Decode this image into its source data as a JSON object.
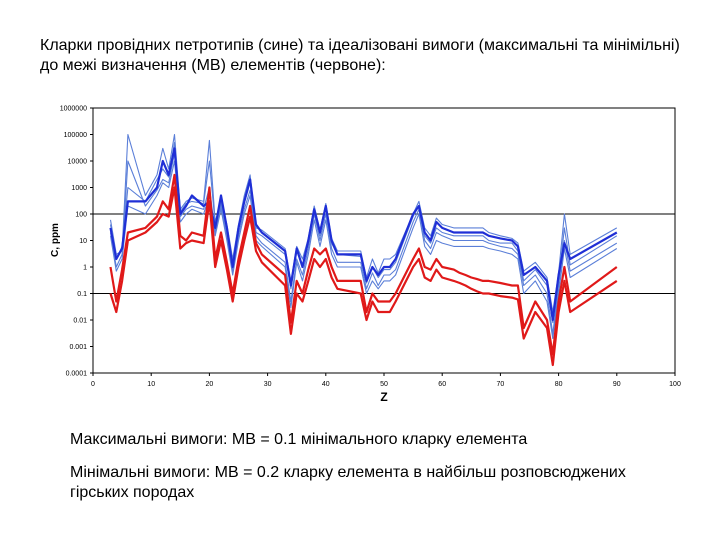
{
  "slide": {
    "title": "Кларки провідних петротипів (сине) та ідеалізовані вимоги (максимальні та мінімільні) до межі визначення (МВ) елементів (червоне):",
    "note_max": "Максимальні вимоги: МВ = 0.1 мінімального кларку елемента",
    "note_min": "Мінімальні вимоги: МВ = 0.2 кларку елемента в найбільш розповсюджених гірських породах"
  },
  "colors": {
    "blue_dark": "#1f2fd6",
    "blue_light": "#5b7fd8",
    "red": "#e01919",
    "threshold": "#000000"
  },
  "chart_data": {
    "type": "line",
    "xlabel": "Z",
    "ylabel": "C, ppm",
    "xlim": [
      0,
      100
    ],
    "ylim_log10": [
      -4,
      6
    ],
    "x_ticks": [
      "0",
      "10",
      "20",
      "30",
      "40",
      "50",
      "60",
      "70",
      "80",
      "90",
      "100"
    ],
    "y_ticks": [
      "1000000",
      "100000",
      "10000",
      "1000",
      "100",
      "10",
      "1",
      "0.1",
      "0.01",
      "0.001",
      "0.0001"
    ],
    "reference_lines": [
      100,
      0.1
    ],
    "series": [
      {
        "name": "clarke-bold",
        "color": "#1f2fd6",
        "style": "bold",
        "x": [
          3,
          4,
          5,
          6,
          9,
          11,
          12,
          13,
          14,
          15,
          16,
          17,
          19,
          20,
          21,
          22,
          23,
          24,
          25,
          26,
          27,
          28,
          29,
          33,
          34,
          35,
          36,
          37,
          38,
          39,
          40,
          41,
          42,
          46,
          47,
          48,
          49,
          50,
          51,
          52,
          55,
          56,
          57,
          58,
          59,
          60,
          62,
          63,
          64,
          65,
          66,
          67,
          68,
          70,
          72,
          73,
          74,
          76,
          78,
          79,
          80,
          81,
          82,
          90
        ],
        "y": [
          30,
          2,
          5,
          300,
          300,
          1000,
          10000,
          3000,
          30000,
          100,
          200,
          500,
          200,
          300,
          30,
          500,
          30,
          1,
          30,
          300,
          2000,
          40,
          20,
          4,
          0.2,
          5,
          1,
          10,
          150,
          20,
          200,
          10,
          3,
          3,
          0.3,
          1,
          0.5,
          1,
          1,
          2,
          100,
          200,
          20,
          10,
          50,
          30,
          20,
          20,
          20,
          20,
          20,
          20,
          15,
          12,
          10,
          6,
          0.5,
          1,
          0.3,
          0.01,
          0.5,
          8,
          2,
          20
        ]
      },
      {
        "name": "petrotype-1",
        "color": "#5b7fd8",
        "style": "thin",
        "x": [
          3,
          4,
          5,
          6,
          9,
          11,
          12,
          13,
          14,
          15,
          16,
          17,
          19,
          20,
          21,
          22,
          23,
          24,
          25,
          26,
          27,
          28,
          29,
          33,
          34,
          35,
          36,
          37,
          38,
          39,
          40,
          41,
          42,
          46,
          47,
          48,
          49,
          50,
          51,
          52,
          55,
          56,
          57,
          58,
          59,
          60,
          62,
          63,
          64,
          65,
          66,
          67,
          68,
          70,
          72,
          73,
          74,
          76,
          78,
          79,
          80,
          81,
          82,
          90
        ],
        "y": [
          60,
          3,
          4,
          100000,
          500,
          3000,
          30000,
          5000,
          100000,
          150,
          300,
          400,
          300,
          60000,
          50,
          300,
          40,
          2,
          40,
          500,
          3000,
          30,
          25,
          5,
          0.3,
          6,
          2,
          12,
          200,
          25,
          250,
          12,
          4,
          4,
          0.4,
          2,
          0.6,
          2,
          2,
          3,
          100,
          300,
          30,
          15,
          70,
          40,
          30,
          30,
          30,
          30,
          30,
          30,
          20,
          15,
          12,
          8,
          0.7,
          1.5,
          0.4,
          0.02,
          0.6,
          100,
          3,
          30
        ]
      },
      {
        "name": "petrotype-2",
        "color": "#5b7fd8",
        "style": "thin",
        "x": [
          3,
          4,
          5,
          6,
          9,
          11,
          12,
          13,
          14,
          15,
          16,
          17,
          19,
          20,
          21,
          22,
          23,
          24,
          25,
          26,
          27,
          28,
          29,
          33,
          34,
          35,
          36,
          37,
          38,
          39,
          40,
          41,
          42,
          46,
          47,
          48,
          49,
          50,
          51,
          52,
          55,
          56,
          57,
          58,
          59,
          60,
          62,
          63,
          64,
          65,
          66,
          67,
          68,
          70,
          72,
          73,
          74,
          76,
          78,
          79,
          80,
          81,
          82,
          90
        ],
        "y": [
          20,
          1,
          3,
          10000,
          200,
          800,
          2000,
          1500,
          20000,
          80,
          150,
          200,
          150,
          1000,
          20,
          200,
          15,
          0.7,
          15,
          150,
          800,
          15,
          8,
          1.5,
          0.05,
          2,
          0.5,
          5,
          100,
          10,
          100,
          5,
          1.5,
          1.5,
          0.15,
          0.6,
          0.2,
          0.5,
          0.5,
          0.8,
          50,
          150,
          10,
          5,
          20,
          15,
          10,
          10,
          10,
          10,
          10,
          10,
          8,
          6,
          5,
          3,
          0.2,
          0.5,
          0.1,
          0.003,
          0.2,
          10,
          0.7,
          8
        ]
      },
      {
        "name": "petrotype-3",
        "color": "#5b7fd8",
        "style": "thin",
        "x": [
          3,
          4,
          5,
          6,
          9,
          11,
          12,
          13,
          14,
          15,
          16,
          17,
          19,
          20,
          21,
          22,
          23,
          24,
          25,
          26,
          27,
          28,
          29,
          33,
          34,
          35,
          36,
          37,
          38,
          39,
          40,
          41,
          42,
          46,
          47,
          48,
          49,
          50,
          51,
          52,
          55,
          56,
          57,
          58,
          59,
          60,
          62,
          63,
          64,
          65,
          66,
          67,
          68,
          70,
          72,
          73,
          74,
          76,
          78,
          79,
          80,
          81,
          82,
          90
        ],
        "y": [
          40,
          2,
          6,
          1000,
          300,
          2000,
          5000,
          2500,
          50000,
          120,
          250,
          300,
          250,
          10000,
          40,
          250,
          25,
          1.5,
          25,
          250,
          1500,
          20,
          15,
          3,
          0.15,
          4,
          1,
          8,
          150,
          15,
          180,
          8,
          3,
          2.5,
          0.25,
          1,
          0.4,
          0.8,
          0.8,
          1.5,
          80,
          200,
          15,
          8,
          30,
          20,
          15,
          15,
          15,
          15,
          15,
          15,
          10,
          8,
          8,
          4,
          0.3,
          0.8,
          0.2,
          0.008,
          0.3,
          30,
          1.2,
          15
        ]
      },
      {
        "name": "petrotype-4",
        "color": "#5b7fd8",
        "style": "thin",
        "x": [
          3,
          4,
          5,
          6,
          9,
          11,
          12,
          13,
          14,
          15,
          16,
          17,
          19,
          20,
          21,
          22,
          23,
          24,
          25,
          26,
          27,
          28,
          29,
          33,
          34,
          35,
          36,
          37,
          38,
          39,
          40,
          41,
          42,
          46,
          47,
          48,
          49,
          50,
          51,
          52,
          55,
          56,
          57,
          58,
          59,
          60,
          62,
          63,
          64,
          65,
          66,
          67,
          68,
          70,
          72,
          73,
          74,
          76,
          78,
          79,
          80,
          81,
          82,
          90
        ],
        "y": [
          15,
          0.7,
          2,
          200,
          100,
          500,
          1500,
          1000,
          10000,
          50,
          100,
          150,
          100,
          500,
          15,
          150,
          10,
          0.5,
          10,
          100,
          500,
          10,
          6,
          1,
          0.03,
          1.5,
          0.3,
          3,
          60,
          6,
          60,
          3,
          1,
          1,
          0.1,
          0.3,
          0.15,
          0.3,
          0.3,
          0.5,
          30,
          100,
          6,
          3,
          10,
          8,
          6,
          6,
          6,
          6,
          6,
          6,
          5,
          4,
          3,
          2,
          0.1,
          0.3,
          0.05,
          0.002,
          0.1,
          5,
          0.4,
          5
        ]
      },
      {
        "name": "limit-max",
        "color": "#e01919",
        "style": "red",
        "x": [
          3,
          4,
          5,
          6,
          9,
          11,
          12,
          13,
          14,
          15,
          16,
          17,
          19,
          20,
          21,
          22,
          23,
          24,
          25,
          26,
          27,
          28,
          29,
          33,
          34,
          35,
          36,
          37,
          38,
          39,
          40,
          41,
          42,
          46,
          47,
          48,
          49,
          50,
          51,
          52,
          55,
          56,
          57,
          58,
          59,
          60,
          62,
          63,
          64,
          65,
          66,
          67,
          68,
          70,
          72,
          73,
          74,
          76,
          78,
          79,
          80,
          81,
          82,
          90
        ],
        "y": [
          1,
          0.05,
          0.8,
          20,
          30,
          80,
          300,
          150,
          3000,
          15,
          10,
          20,
          15,
          1000,
          2,
          20,
          1.5,
          0.1,
          2,
          20,
          200,
          8,
          3,
          0.5,
          0.008,
          0.3,
          0.1,
          0.8,
          5,
          3,
          5,
          1,
          0.3,
          0.3,
          0.02,
          0.1,
          0.05,
          0.05,
          0.05,
          0.1,
          2,
          5,
          1,
          0.8,
          2,
          1,
          0.8,
          0.6,
          0.5,
          0.4,
          0.35,
          0.3,
          0.3,
          0.25,
          0.2,
          0.2,
          0.005,
          0.05,
          0.01,
          0.0005,
          0.05,
          1,
          0.05,
          1
        ]
      },
      {
        "name": "limit-min",
        "color": "#e01919",
        "style": "red",
        "x": [
          3,
          4,
          5,
          6,
          9,
          11,
          12,
          13,
          14,
          15,
          16,
          17,
          19,
          20,
          21,
          22,
          23,
          24,
          25,
          26,
          27,
          28,
          29,
          33,
          34,
          35,
          36,
          37,
          38,
          39,
          40,
          41,
          42,
          46,
          47,
          48,
          49,
          50,
          51,
          52,
          55,
          56,
          57,
          58,
          59,
          60,
          62,
          63,
          64,
          65,
          66,
          67,
          68,
          70,
          72,
          73,
          74,
          76,
          78,
          79,
          80,
          81,
          82,
          90
        ],
        "y": [
          0.1,
          0.02,
          0.3,
          10,
          20,
          50,
          100,
          80,
          1000,
          5,
          8,
          10,
          8,
          300,
          1,
          10,
          0.8,
          0.05,
          1,
          10,
          80,
          4,
          1.5,
          0.2,
          0.003,
          0.1,
          0.05,
          0.3,
          2,
          1,
          2,
          0.4,
          0.15,
          0.1,
          0.01,
          0.05,
          0.02,
          0.02,
          0.02,
          0.05,
          1,
          2,
          0.4,
          0.3,
          0.8,
          0.4,
          0.3,
          0.25,
          0.2,
          0.15,
          0.12,
          0.1,
          0.1,
          0.08,
          0.07,
          0.06,
          0.002,
          0.02,
          0.005,
          0.0002,
          0.02,
          0.3,
          0.02,
          0.3
        ]
      }
    ]
  }
}
